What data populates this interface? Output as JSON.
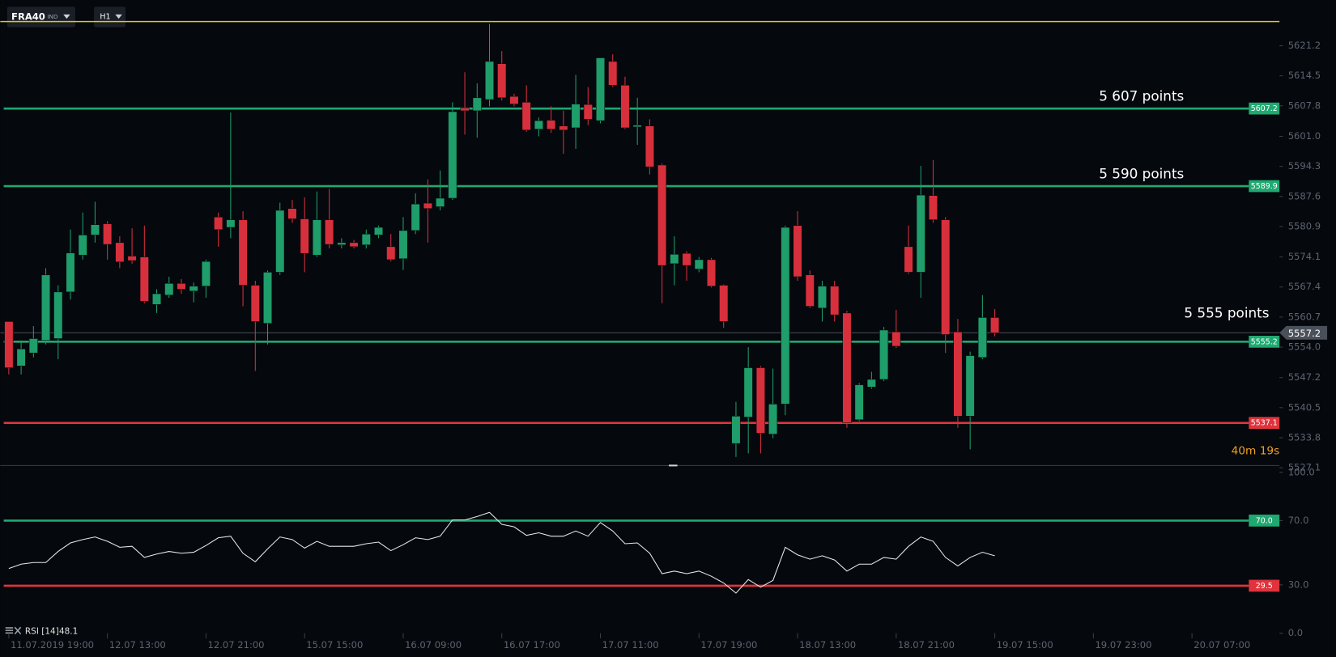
{
  "toolbar": {
    "symbol": "FRA40",
    "market": "IND",
    "timeframe": "H1"
  },
  "chart_data": [
    {
      "type": "candlestick",
      "up_color": "#1f9d6a",
      "down_color": "#d7303c",
      "xlim": [
        -0.69,
        103.1
      ],
      "ylim": [
        5527.6,
        5631.4
      ],
      "yticks": [
        5621.2,
        5614.5,
        5607.8,
        {
          "value": 5601,
          "label": "5601.0"
        },
        5594.3,
        5587.6,
        5580.9,
        5574.1,
        5567.4,
        5560.7,
        {
          "value": 5554,
          "label": "5554.0"
        },
        5547.2,
        5540.5,
        5533.8,
        5527.1
      ],
      "open": [
        5559.7,
        5549.8,
        5552.7,
        5555.5,
        5555.9,
        5566.3,
        5574.5,
        5579.0,
        5581.5,
        5577.3,
        5574.3,
        5574.1,
        5563.5,
        5565.6,
        5568.2,
        5566.5,
        5567.6,
        5583.0,
        5580.7,
        5582.4,
        5567.8,
        5559.3,
        5570.7,
        5584.9,
        5582.6,
        5574.5,
        5582.4,
        5576.8,
        5577.3,
        5576.8,
        5579.0,
        5576.4,
        5573.7,
        5580.0,
        5586.1,
        5585.3,
        5587.2,
        5607.3,
        5606.7,
        5609.2,
        5617.2,
        5609.9,
        5608.6,
        5602.6,
        5604.6,
        5603.3,
        5602.9,
        5608.1,
        5604.5,
        5617.7,
        5612.4,
        5603.1,
        5603.3,
        5594.6,
        5572.6,
        5574.9,
        5571.4,
        5573.5,
        5567.8,
        5532.5,
        5538.4,
        5549.4,
        5534.6,
        5541.3,
        5581.1,
        5570.1,
        5562.7,
        5567.6,
        5561.6,
        5537.8,
        5545.1,
        5546.8,
        5557.4,
        5576.4,
        5570.7,
        5587.8,
        5582.4,
        5557.4,
        5538.6,
        5551.7,
        5560.6
      ],
      "high": [
        5559.7,
        5555.5,
        5558.7,
        5571.6,
        5567.8,
        5580.2,
        5584.0,
        5586.4,
        5582.1,
        5578.7,
        5580.5,
        5581.1,
        5566.9,
        5569.7,
        5569.2,
        5568.4,
        5573.5,
        5584.0,
        5606.3,
        5584.3,
        5568.8,
        5571.1,
        5586.2,
        5586.8,
        5587.4,
        5588.7,
        5589.3,
        5578.3,
        5577.9,
        5580.2,
        5581.1,
        5579.2,
        5583.0,
        5588.3,
        5591.4,
        5593.4,
        5608.6,
        5615.3,
        5612.8,
        5626.1,
        5620.0,
        5610.5,
        5612.4,
        5605.2,
        5607.7,
        5606.7,
        5614.7,
        5612.0,
        5618.5,
        5619.3,
        5614.3,
        5609.6,
        5604.8,
        5595.0,
        5578.7,
        5575.4,
        5574.1,
        5573.9,
        5568.0,
        5541.8,
        5554.0,
        5549.8,
        5549.2,
        5581.1,
        5584.3,
        5571.1,
        5568.8,
        5568.8,
        5562.1,
        5546.0,
        5548.5,
        5558.5,
        5562.3,
        5581.1,
        5594.4,
        5595.7,
        5583.0,
        5560.3,
        5553.0,
        5565.6,
        5562.5
      ],
      "low": [
        5547.9,
        5547.9,
        5551.7,
        5554.6,
        5551.3,
        5564.6,
        5573.5,
        5577.3,
        5573.5,
        5571.6,
        5572.6,
        5563.8,
        5561.6,
        5565.0,
        5565.9,
        5564.0,
        5565.0,
        5576.4,
        5578.3,
        5563.1,
        5548.7,
        5554.6,
        5570.1,
        5581.7,
        5570.7,
        5574.1,
        5576.0,
        5576.0,
        5576.0,
        5576.0,
        5578.3,
        5573.1,
        5571.2,
        5579.2,
        5577.3,
        5584.5,
        5586.8,
        5601.4,
        5600.7,
        5607.7,
        5609.0,
        5607.7,
        5602.0,
        5601.0,
        5601.8,
        5597.1,
        5598.2,
        5603.5,
        5603.9,
        5612.0,
        5602.6,
        5599.1,
        5592.5,
        5563.8,
        5567.8,
        5568.8,
        5570.7,
        5567.3,
        5558.3,
        5529.5,
        5530.3,
        5530.3,
        5533.7,
        5538.8,
        5568.8,
        5562.7,
        5559.7,
        5559.7,
        5536.0,
        5537.5,
        5544.7,
        5546.4,
        5553.8,
        5570.3,
        5565.0,
        5581.7,
        5552.7,
        5536.0,
        5531.2,
        5551.3,
        5556.4
      ],
      "close": [
        5549.4,
        5553.6,
        5555.9,
        5570.1,
        5566.3,
        5575.0,
        5579.0,
        5581.3,
        5576.9,
        5573.0,
        5573.3,
        5564.2,
        5565.9,
        5568.2,
        5566.9,
        5567.6,
        5573.1,
        5580.2,
        5582.4,
        5567.8,
        5559.7,
        5570.7,
        5584.5,
        5582.6,
        5574.9,
        5582.4,
        5576.9,
        5577.3,
        5576.4,
        5579.2,
        5580.7,
        5573.5,
        5580.0,
        5585.9,
        5584.9,
        5587.2,
        5606.5,
        5606.7,
        5609.6,
        5617.7,
        5609.6,
        5608.2,
        5602.4,
        5604.5,
        5602.6,
        5602.4,
        5608.2,
        5604.8,
        5618.5,
        5612.4,
        5602.9,
        5603.5,
        5594.2,
        5572.2,
        5574.7,
        5572.2,
        5573.5,
        5567.6,
        5559.7,
        5538.6,
        5549.4,
        5534.8,
        5541.3,
        5580.7,
        5569.7,
        5563.1,
        5567.6,
        5561.2,
        5537.1,
        5545.6,
        5546.8,
        5557.8,
        5554.2,
        5570.7,
        5587.9,
        5582.4,
        5556.8,
        5538.6,
        5552.1,
        5560.6,
        5557.2
      ],
      "levels": [
        {
          "value": 5607.2,
          "color": "#1fa971",
          "text": "5 607 points"
        },
        {
          "value": 5589.9,
          "color": "#1fa971",
          "text": "5 590 points"
        },
        {
          "value": 5555.2,
          "color": "#1fa971",
          "text": "5 555 points"
        },
        {
          "value": 5537.1,
          "color": "#e0333c"
        }
      ],
      "current_price": 5557.2,
      "upper_line": 5626.6,
      "timer": "40m 19s"
    },
    {
      "type": "line",
      "name": "RSI [14]",
      "color": "#e8e8e8",
      "xlim": [
        -0.69,
        103.1
      ],
      "ylim": [
        0,
        100
      ],
      "yticks": [
        {
          "value": 100,
          "label": "100.0"
        },
        {
          "value": 70,
          "label": "70.0"
        },
        {
          "value": 30,
          "label": "30.0"
        },
        {
          "value": 0,
          "label": "0.0"
        }
      ],
      "values": [
        40.2,
        42.9,
        43.9,
        43.9,
        50.8,
        56.1,
        58.2,
        59.8,
        57.1,
        53.4,
        54.0,
        47.1,
        49.2,
        50.8,
        49.7,
        50.3,
        54.5,
        59.3,
        60.3,
        49.7,
        44.4,
        52.4,
        59.8,
        58.2,
        52.9,
        57.1,
        54.0,
        54.0,
        54.0,
        55.6,
        56.6,
        51.3,
        55.0,
        59.3,
        58.2,
        60.3,
        70.4,
        70.4,
        72.5,
        75.1,
        67.7,
        66.1,
        60.8,
        62.4,
        60.3,
        60.3,
        63.5,
        60.3,
        68.8,
        63.5,
        55.6,
        56.1,
        49.7,
        37.0,
        38.6,
        37.0,
        38.6,
        35.4,
        31.2,
        24.9,
        33.3,
        28.6,
        32.8,
        53.4,
        48.7,
        46.0,
        48.1,
        45.5,
        38.6,
        42.9,
        42.9,
        47.1,
        46.0,
        54.0,
        59.8,
        57.1,
        47.1,
        41.8,
        47.1,
        50.3,
        48.1
      ],
      "levels": [
        {
          "value": 70,
          "label": "70.0",
          "color": "#1fa971"
        },
        {
          "value": 29.5,
          "color": "#e0333c"
        }
      ],
      "xticks": [
        {
          "value": 0,
          "label": "11.07.2019 19:00"
        },
        {
          "value": 8,
          "label": "12.07 13:00"
        },
        {
          "value": 16,
          "label": "12.07 21:00"
        },
        {
          "value": 24,
          "label": "15.07 15:00"
        },
        {
          "value": 32,
          "label": "16.07 09:00"
        },
        {
          "value": 40,
          "label": "16.07 17:00"
        },
        {
          "value": 48,
          "label": "17.07 11:00"
        },
        {
          "value": 56,
          "label": "17.07 19:00"
        },
        {
          "value": 64,
          "label": "18.07 13:00"
        },
        {
          "value": 72,
          "label": "18.07 21:00"
        },
        {
          "value": 80,
          "label": "19.07 15:00"
        },
        {
          "value": 88,
          "label": "19.07 23:00"
        },
        {
          "value": 96,
          "label": "20.07 07:00"
        }
      ]
    }
  ]
}
